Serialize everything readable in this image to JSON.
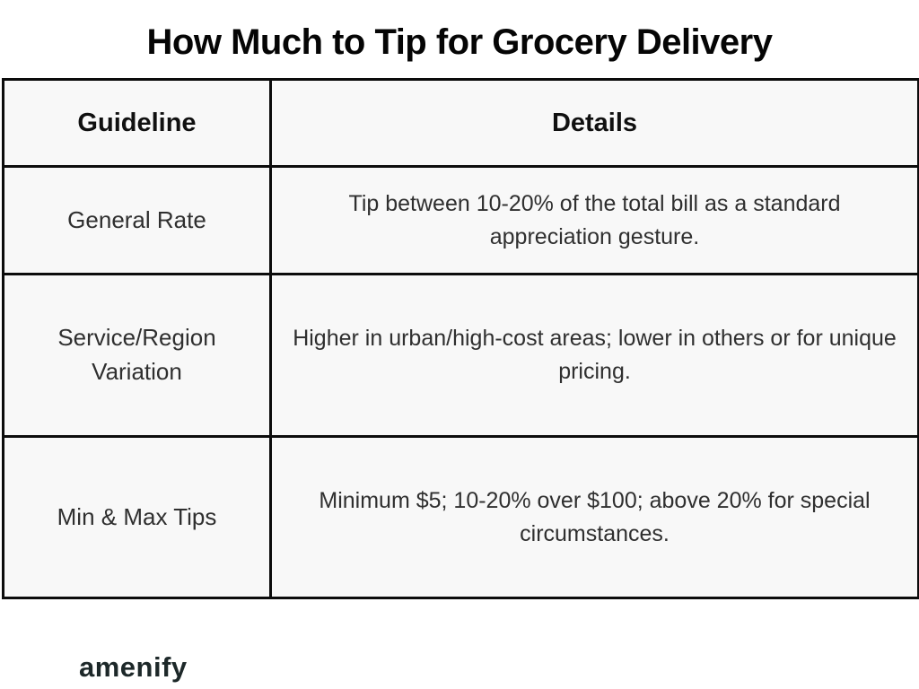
{
  "title": "How Much to Tip for Grocery Delivery",
  "table": {
    "headers": [
      "Guideline",
      "Details"
    ],
    "rows": [
      {
        "guideline": "General Rate",
        "details": "Tip between 10-20% of the total bill as a standard appreciation gesture."
      },
      {
        "guideline": "Service/Region Variation",
        "details": "Higher in urban/high-cost areas; lower in others or for unique pricing."
      },
      {
        "guideline": "Min & Max Tips",
        "details": "Minimum $5; 10-20% over $100; above 20% for special circumstances."
      }
    ]
  },
  "footer": {
    "logo_text": "amenify"
  },
  "colors": {
    "cell_bg": "#f8f8f8",
    "border": "#0c0c0c",
    "title": "#050505",
    "text": "#2f2f2f",
    "logo": "#1d2829",
    "page_bg": "#ffffff"
  }
}
